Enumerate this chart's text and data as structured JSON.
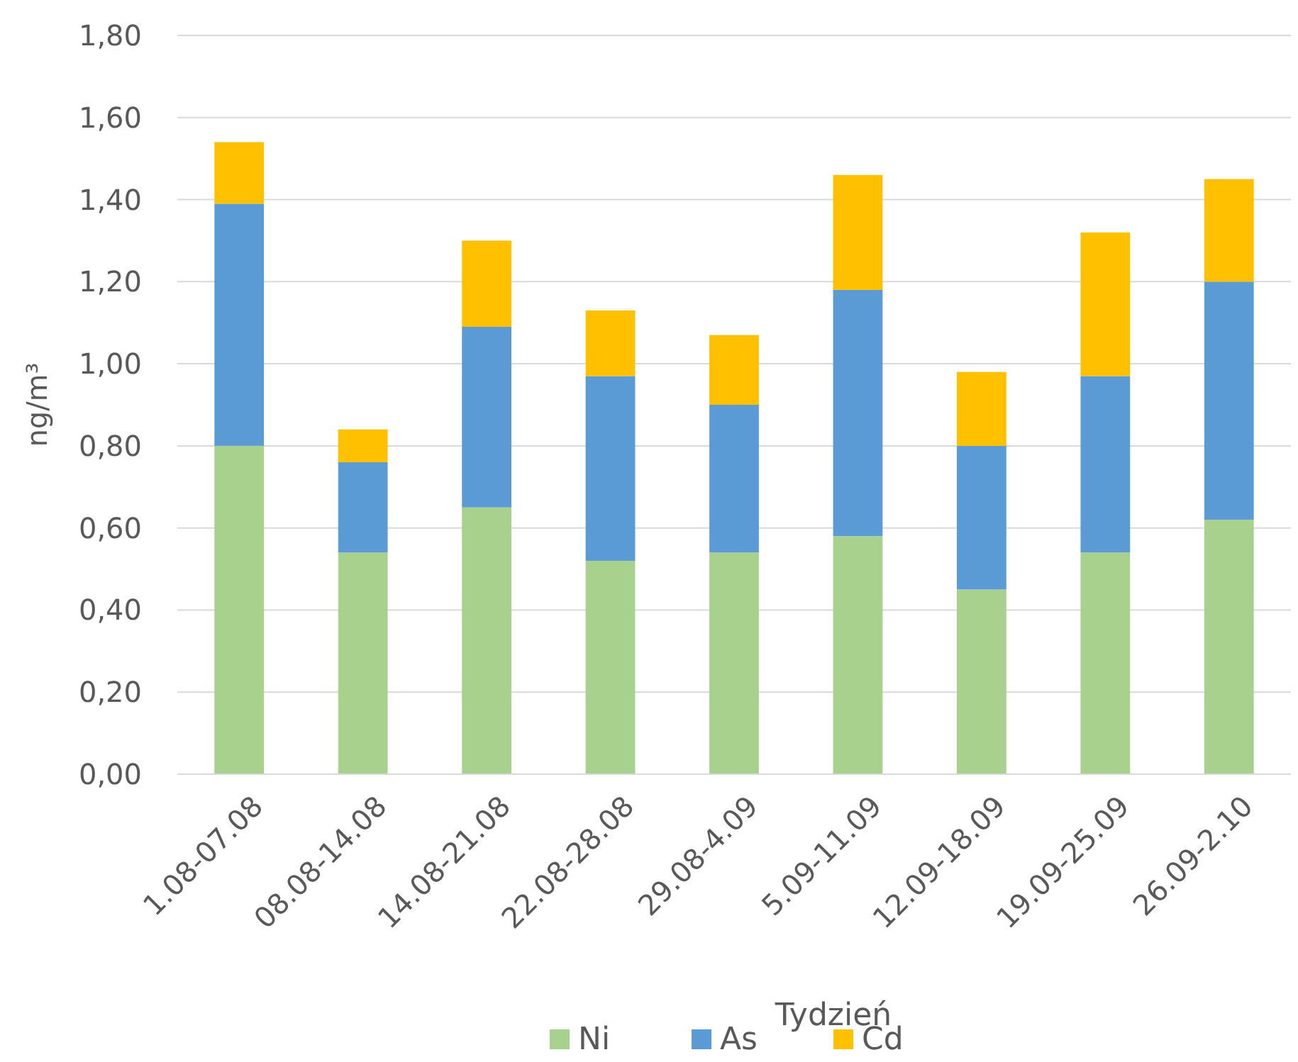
{
  "chart_data": {
    "type": "bar",
    "stacked": true,
    "xlabel": "Tydzień",
    "ylabel": "ng/m³",
    "categories": [
      "1.08-07.08",
      "08.08-14.08",
      "14.08-21.08",
      "22.08-28.08",
      "29.08-4.09",
      "5.09-11.09",
      "12.09-18.09",
      "19.09-25.09",
      "26.09-2.10"
    ],
    "series": [
      {
        "name": "Ni",
        "color": "#a9d18e",
        "values": [
          0.8,
          0.54,
          0.65,
          0.52,
          0.54,
          0.58,
          0.45,
          0.54,
          0.62
        ]
      },
      {
        "name": "As",
        "color": "#5b9bd5",
        "values": [
          0.59,
          0.22,
          0.44,
          0.45,
          0.36,
          0.6,
          0.35,
          0.43,
          0.58
        ]
      },
      {
        "name": "Cd",
        "color": "#ffc000",
        "values": [
          0.15,
          0.08,
          0.21,
          0.16,
          0.17,
          0.28,
          0.18,
          0.35,
          0.25
        ]
      }
    ],
    "ylim": [
      0,
      1.8
    ],
    "yticks": [
      {
        "value": 0,
        "label": "0,00"
      },
      {
        "value": 0.2,
        "label": "0,20"
      },
      {
        "value": 0.4,
        "label": "0,40"
      },
      {
        "value": 0.6,
        "label": "0,60"
      },
      {
        "value": 0.8,
        "label": "0,80"
      },
      {
        "value": 1.0,
        "label": "1,00"
      },
      {
        "value": 1.2,
        "label": "1,20"
      },
      {
        "value": 1.4,
        "label": "1,40"
      },
      {
        "value": 1.6,
        "label": "1,60"
      },
      {
        "value": 1.8,
        "label": "1,80"
      }
    ],
    "grid": "y",
    "legend": "bottom"
  }
}
